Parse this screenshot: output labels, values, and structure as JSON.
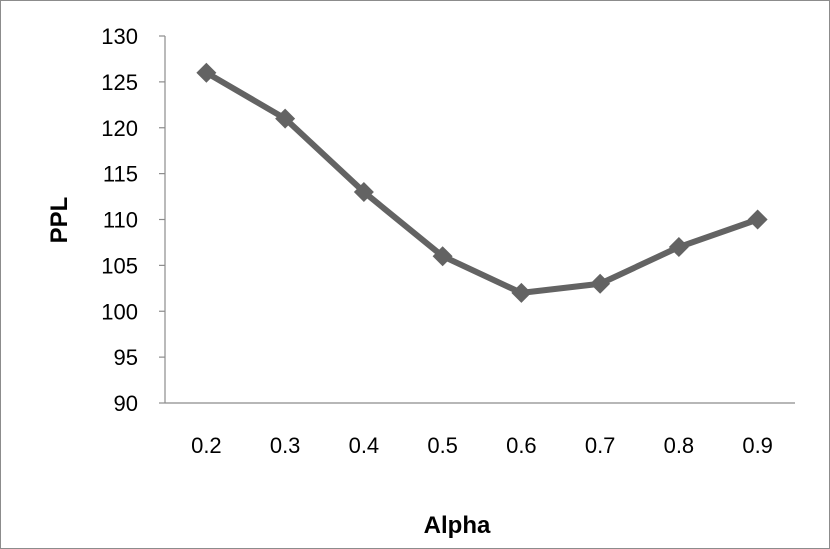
{
  "chart_data": {
    "type": "line",
    "title": "",
    "xlabel": "Alpha",
    "ylabel": "PPL",
    "categories": [
      "0.2",
      "0.3",
      "0.4",
      "0.5",
      "0.6",
      "0.7",
      "0.8",
      "0.9"
    ],
    "series": [
      {
        "values": [
          126,
          121,
          113,
          106,
          102,
          103,
          107,
          110
        ]
      }
    ],
    "ylim": [
      90,
      130
    ],
    "yticks": [
      "90",
      "95",
      "100",
      "105",
      "110",
      "115",
      "120",
      "125",
      "130"
    ],
    "grid": false,
    "legend": "none",
    "marker": "diamond",
    "line_color": "#636363"
  }
}
